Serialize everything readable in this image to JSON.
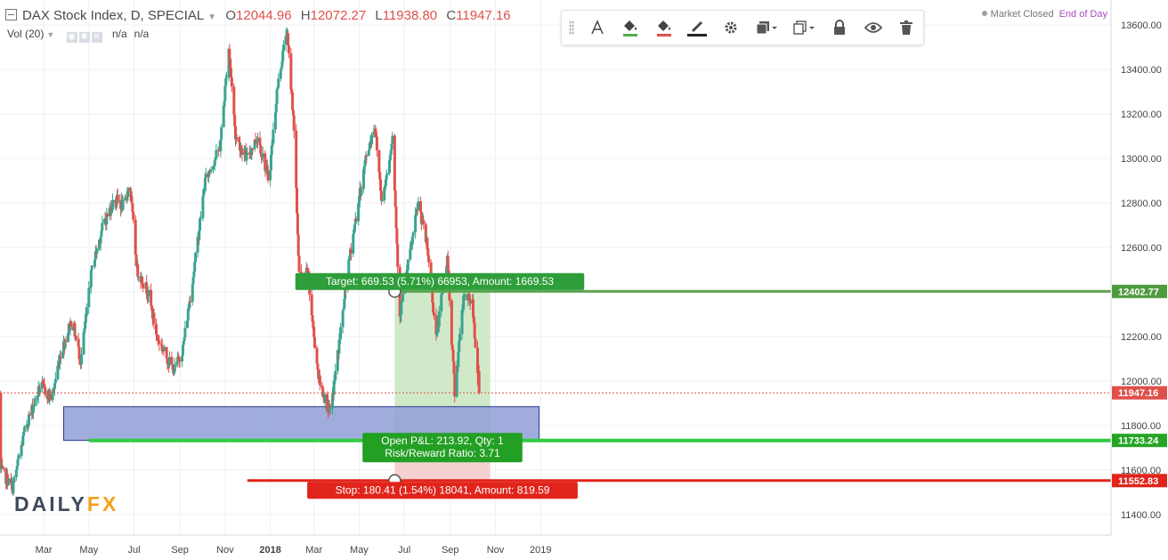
{
  "header": {
    "title": "DAX Stock Index, D, SPECIAL",
    "open_label": "O",
    "open": "12044.96",
    "high_label": "H",
    "high": "12072.27",
    "low_label": "L",
    "low": "11938.80",
    "close_label": "C",
    "close": "11947.16",
    "volume_label": "Vol (20)",
    "volume_values": [
      "n/a",
      "n/a"
    ]
  },
  "status": {
    "market": "Market Closed",
    "session": "End of Day"
  },
  "toolbar": {
    "icons": [
      "grip-icon",
      "text-icon",
      "fill-icon",
      "bg-fill-icon",
      "line-color-icon",
      "gear-icon",
      "layers-icon",
      "clone-icon",
      "lock-icon",
      "eye-icon",
      "trash-icon"
    ],
    "fill_color": "#4caf50",
    "bg_fill_color": "#e0504b",
    "line_color": "#222222"
  },
  "logo": {
    "main": "DAILY",
    "accent": "FX"
  },
  "colors": {
    "up": "#3aa38f",
    "down": "#e0504b",
    "target_zone": "#c8e6c0",
    "stop_zone": "#f6c9c9",
    "support_box": "#8f9fd6",
    "target_line": "#5aa34e",
    "entry_line": "#2ecc40",
    "stop_line": "#e0241b"
  },
  "chart_data": {
    "type": "candlestick",
    "instrument": "DAX Stock Index",
    "interval": "D",
    "x_tick_labels": [
      "Mar",
      "May",
      "Jul",
      "Sep",
      "Nov",
      "2018",
      "Mar",
      "May",
      "Jul",
      "Sep",
      "Nov",
      "2019"
    ],
    "x_ticks": [
      "2017-03",
      "2017-05",
      "2017-07",
      "2017-09",
      "2017-11",
      "2018-01",
      "2018-03",
      "2018-05",
      "2018-07",
      "2018-09",
      "2018-11",
      "2019-01"
    ],
    "ylim": [
      11300,
      13650
    ],
    "y_ticks": [
      11400,
      11600,
      11800,
      12000,
      12200,
      12400,
      12600,
      12800,
      13000,
      13200,
      13400,
      13600
    ],
    "y_tick_labels": [
      "11400.00",
      "11600.00",
      "11800.00",
      "12000.00",
      "12200.00",
      "12400.00",
      "12600.00",
      "12800.00",
      "13000.00",
      "13200.00",
      "13400.00",
      "13600.00"
    ],
    "grid": true,
    "price_path": [
      [
        "2017-01-02",
        11600
      ],
      [
        "2017-01-18",
        11520
      ],
      [
        "2017-02-05",
        11800
      ],
      [
        "2017-02-25",
        11980
      ],
      [
        "2017-03-12",
        11920
      ],
      [
        "2017-03-22",
        12100
      ],
      [
        "2017-04-08",
        12280
      ],
      [
        "2017-04-20",
        12090
      ],
      [
        "2017-05-05",
        12500
      ],
      [
        "2017-05-20",
        12700
      ],
      [
        "2017-06-05",
        12820
      ],
      [
        "2017-06-18",
        12780
      ],
      [
        "2017-06-25",
        12900
      ],
      [
        "2017-07-05",
        12500
      ],
      [
        "2017-07-20",
        12400
      ],
      [
        "2017-08-01",
        12200
      ],
      [
        "2017-08-15",
        12100
      ],
      [
        "2017-08-25",
        12050
      ],
      [
        "2017-09-05",
        12150
      ],
      [
        "2017-09-20",
        12500
      ],
      [
        "2017-10-05",
        12900
      ],
      [
        "2017-10-25",
        13050
      ],
      [
        "2017-11-06",
        13500
      ],
      [
        "2017-11-15",
        13100
      ],
      [
        "2017-11-30",
        13000
      ],
      [
        "2017-12-15",
        13100
      ],
      [
        "2017-12-30",
        12900
      ],
      [
        "2018-01-10",
        13300
      ],
      [
        "2018-01-23",
        13580
      ],
      [
        "2018-02-01",
        13200
      ],
      [
        "2018-02-10",
        12400
      ],
      [
        "2018-02-20",
        12500
      ],
      [
        "2018-03-01",
        12200
      ],
      [
        "2018-03-08",
        12000
      ],
      [
        "2018-03-23",
        11850
      ],
      [
        "2018-04-05",
        12200
      ],
      [
        "2018-04-20",
        12600
      ],
      [
        "2018-05-10",
        13000
      ],
      [
        "2018-05-22",
        13150
      ],
      [
        "2018-06-01",
        12800
      ],
      [
        "2018-06-15",
        13100
      ],
      [
        "2018-06-25",
        12300
      ],
      [
        "2018-07-05",
        12500
      ],
      [
        "2018-07-20",
        12800
      ],
      [
        "2018-08-01",
        12600
      ],
      [
        "2018-08-13",
        12200
      ],
      [
        "2018-08-28",
        12550
      ],
      [
        "2018-09-07",
        11950
      ],
      [
        "2018-09-20",
        12400
      ],
      [
        "2018-10-01",
        12350
      ],
      [
        "2018-10-10",
        11947
      ]
    ],
    "last": {
      "open": 12044.96,
      "high": 12072.27,
      "low": 11938.8,
      "close": 11947.16
    },
    "position": {
      "entry": 11733.24,
      "target": 12402.77,
      "stop": 11552.83,
      "target_label": "Target: 669.53 (5.71%) 66953, Amount: 1669.53",
      "stop_label": "Stop: 180.41 (1.54%) 18041, Amount: 819.59",
      "pnl_label": "Open P&L: 213.92, Qty: 1",
      "rr_label": "Risk/Reward Ratio: 3.71",
      "start": "2018-06-18",
      "end": "2018-10-25"
    },
    "support_zone": {
      "low": 11733.24,
      "high": 11885,
      "start": "2017-03-28",
      "end": "2018-12-30"
    },
    "horizontal_lines": [
      {
        "label": "entry",
        "price": 11733.24,
        "start": "2017-05-01",
        "end": "2019-02-15"
      },
      {
        "label": "stop",
        "price": 11552.83,
        "start": "2017-12-01",
        "end": "2019-02-15"
      }
    ],
    "price_labels": [
      "12402.77",
      "11947.16",
      "11733.24",
      "11552.83"
    ]
  }
}
